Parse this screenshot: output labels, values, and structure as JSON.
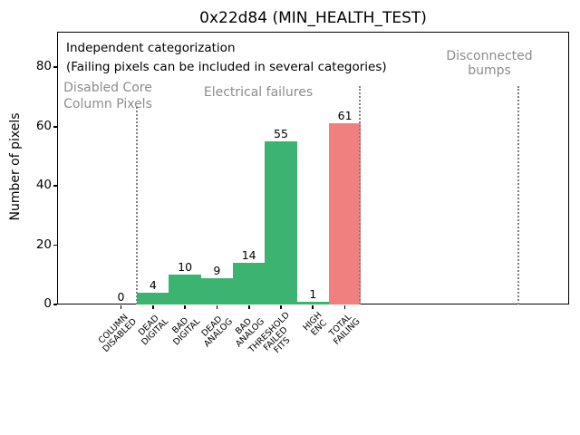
{
  "chart_data": {
    "type": "bar",
    "title": "0x22d84 (MIN_HEALTH_TEST)",
    "xlabel": "",
    "ylabel": "Number of pixels",
    "ylim": [
      0,
      92
    ],
    "yticks": [
      0,
      20,
      40,
      60,
      80
    ],
    "grid": false,
    "legend": null,
    "categories": [
      [
        "COLUMN",
        "DISABLED"
      ],
      [
        "DEAD",
        "DIGITAL"
      ],
      [
        "BAD",
        "DIGITAL"
      ],
      [
        "DEAD",
        "ANALOG"
      ],
      [
        "BAD",
        "ANALOG"
      ],
      [
        "THRESHOLD",
        "FAILED",
        "FITS"
      ],
      [
        "HIGH",
        "ENC"
      ],
      [
        "TOTAL",
        "FAILING"
      ]
    ],
    "values": [
      0,
      4,
      10,
      9,
      14,
      55,
      1,
      61
    ],
    "bar_colors": [
      "#3cb371",
      "#3cb371",
      "#3cb371",
      "#3cb371",
      "#3cb371",
      "#3cb371",
      "#3cb371",
      "#f08080"
    ],
    "annotation": {
      "lines": [
        "Independent categorization",
        "(Failing pixels can be included in several categories)"
      ]
    },
    "sections": [
      {
        "label_lines": [
          "Disabled Core",
          "Column Pixels"
        ]
      },
      {
        "label_lines": [
          "Electrical failures"
        ]
      },
      {
        "label_lines": [
          "Disconnected",
          "bumps"
        ]
      }
    ],
    "separator_style": "dotted"
  },
  "colors": {
    "bar_green": "#3cb371",
    "bar_red": "#f08080",
    "section_label_gray": "#8c8c8c",
    "separator_gray": "#7f7f7f",
    "text": "#000000",
    "background": "#ffffff"
  }
}
